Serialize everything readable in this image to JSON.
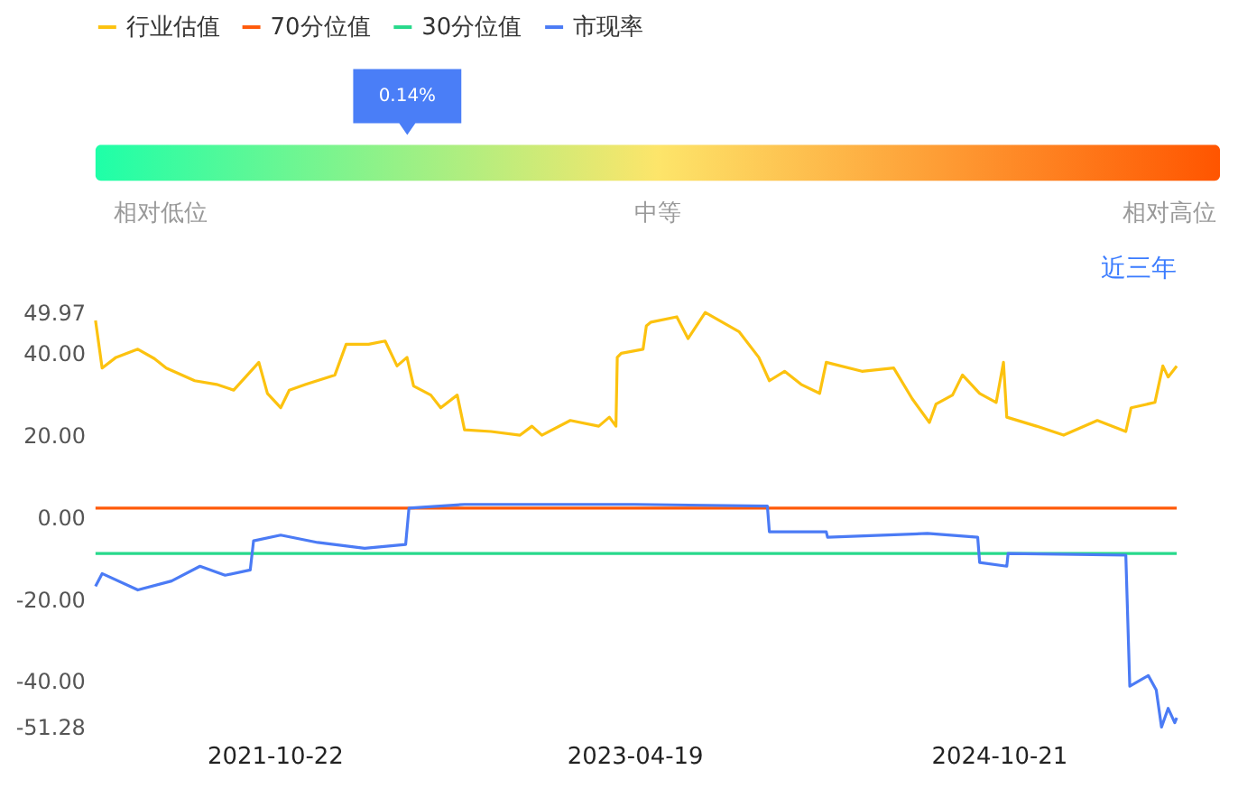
{
  "chart_data": [
    {
      "type": "other",
      "annotations": [
        "0.14%",
        "相对低位",
        "中等",
        "相对高位"
      ],
      "colors": [
        "#1effa8",
        "#fde56a",
        "#ff5500"
      ]
    },
    {
      "type": "line",
      "legend": "top left",
      "grid": false,
      "line_style": "solid",
      "marker": "none",
      "ylim": [
        -51.28,
        49.97
      ],
      "yticks": [
        {
          "value": 49.97,
          "label": "49.97"
        },
        {
          "value": 40,
          "label": "40.00"
        },
        {
          "value": 20,
          "label": "20.00"
        },
        {
          "value": 0,
          "label": "0.00"
        },
        {
          "value": -20,
          "label": "-20.00"
        },
        {
          "value": -40,
          "label": "-40.00"
        },
        {
          "value": -51.28,
          "label": "-51.28"
        }
      ],
      "xlim": [
        "2021-01-24",
        "2025-07-17"
      ],
      "xticks": [
        "2021-10-22",
        "2023-04-19",
        "2024-10-21"
      ],
      "annotations": [
        "近三年"
      ],
      "series": [
        {
          "name": "行业估值",
          "color": "#fcc20f",
          "x": [
            "2021-01-24",
            "2021-02-03",
            "2021-02-24",
            "2021-03-29",
            "2021-04-23",
            "2021-05-11",
            "2021-06-23",
            "2021-07-26",
            "2021-08-21",
            "2021-09-28",
            "2021-10-11",
            "2021-10-31",
            "2021-11-13",
            "2021-12-08",
            "2022-01-21",
            "2022-02-07",
            "2022-03-13",
            "2022-04-07",
            "2022-04-25",
            "2022-05-10",
            "2022-05-20",
            "2022-06-15",
            "2022-06-30",
            "2022-07-25",
            "2022-08-05",
            "2022-09-14",
            "2022-10-28",
            "2022-11-15",
            "2022-11-30",
            "2023-01-12",
            "2023-02-24",
            "2023-03-12",
            "2023-03-22",
            "2023-03-24",
            "2023-03-30",
            "2023-05-02",
            "2023-05-07",
            "2023-05-14",
            "2023-06-22",
            "2023-07-09",
            "2023-08-04",
            "2023-09-24",
            "2023-10-24",
            "2023-11-09",
            "2023-12-02",
            "2023-12-27",
            "2024-01-24",
            "2024-02-03",
            "2024-03-28",
            "2024-05-15",
            "2024-06-12",
            "2024-07-08",
            "2024-07-18",
            "2024-08-12",
            "2024-08-27",
            "2024-09-22",
            "2024-10-17",
            "2024-10-28",
            "2024-11-02",
            "2024-12-17",
            "2025-01-27",
            "2025-03-19",
            "2025-05-01",
            "2025-05-09",
            "2025-06-14",
            "2025-06-26",
            "2025-07-04",
            "2025-07-17"
          ],
          "values": [
            48,
            36.4,
            39,
            41,
            38.7,
            36.4,
            33.3,
            32.4,
            31,
            37.8,
            30.2,
            26.7,
            31,
            32.4,
            34.7,
            42.2,
            42.2,
            43,
            36.9,
            39,
            32,
            29.8,
            26.7,
            29.8,
            21.3,
            20.9,
            20,
            22.2,
            20,
            23.6,
            22.2,
            24.4,
            22.2,
            39,
            40,
            41,
            46.7,
            47.6,
            48.9,
            43.6,
            49.97,
            45.3,
            39,
            33.3,
            35.6,
            32.4,
            30.2,
            37.8,
            35.6,
            36.4,
            28.9,
            23.1,
            27.6,
            29.8,
            34.7,
            30.2,
            28,
            37.8,
            24.4,
            22.2,
            20,
            23.6,
            20.9,
            26.7,
            28,
            36.9,
            34.2,
            36.9
          ]
        },
        {
          "name": "70分位值",
          "color": "#ff5a0a",
          "x": [
            "2021-01-24",
            "2025-07-17"
          ],
          "values": [
            2.2,
            2.2
          ]
        },
        {
          "name": "30分位值",
          "color": "#27d98b",
          "x": [
            "2021-01-24",
            "2025-07-17"
          ],
          "values": [
            -8.9,
            -8.9
          ]
        },
        {
          "name": "市现率",
          "color": "#4b7bf5",
          "x": [
            "2021-01-24",
            "2021-02-03",
            "2021-03-29",
            "2021-05-19",
            "2021-07-01",
            "2021-08-08",
            "2021-09-15",
            "2021-09-20",
            "2021-10-31",
            "2021-12-26",
            "2022-03-07",
            "2022-05-08",
            "2022-05-13",
            "2022-08-05",
            "2023-04-19",
            "2023-11-06",
            "2023-11-09",
            "2024-02-03",
            "2024-02-05",
            "2024-07-05",
            "2024-09-19",
            "2024-09-22",
            "2024-11-02",
            "2024-11-04",
            "2025-05-01",
            "2025-05-07",
            "2025-06-04",
            "2025-06-16",
            "2025-06-24",
            "2025-07-04",
            "2025-07-14",
            "2025-07-17"
          ],
          "values": [
            -16.9,
            -13.8,
            -17.8,
            -15.6,
            -12,
            -14.2,
            -12.9,
            -5.8,
            -4.4,
            -6.2,
            -7.6,
            -6.7,
            2.2,
            3.1,
            3.1,
            2.7,
            -3.6,
            -3.6,
            -4.9,
            -4,
            -4.9,
            -11.1,
            -12,
            -8.9,
            -9.3,
            -41.3,
            -38.7,
            -42.2,
            -51.28,
            -46.7,
            -50.2,
            -49
          ]
        }
      ]
    }
  ]
}
